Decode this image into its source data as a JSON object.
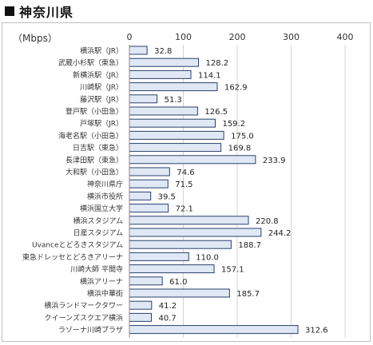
{
  "header": {
    "title": "神奈川県"
  },
  "chart_data": {
    "type": "bar",
    "orientation": "horizontal",
    "unit_label": "（Mbps）",
    "xlim": [
      0,
      400
    ],
    "xticks": [
      "0",
      "100",
      "200",
      "300",
      "400"
    ],
    "grid": true,
    "bar_color": "#e0e8f5",
    "bar_stroke": "#2a3f6b",
    "categories": [
      "横浜駅（JR）",
      "武蔵小杉駅（東急）",
      "新横浜駅（JR）",
      "川崎駅（JR）",
      "藤沢駅（JR）",
      "登戸駅（小田急）",
      "戸塚駅（JR）",
      "海老名駅（小田急）",
      "日吉駅（東急）",
      "長津田駅（東急）",
      "大和駅（小田急）",
      "神奈川県庁",
      "横浜市役所",
      "横浜国立大学",
      "横浜スタジアム",
      "日産スタジアム",
      "Uvanceとどろきスタジアム",
      "東急ドレッセとどろきアリーナ",
      "川崎大師 平間寺",
      "横浜アリーナ",
      "横浜中華街",
      "横浜ランドマークタワー",
      "クイーンズスクエア横浜",
      "ラゾーナ川崎プラザ"
    ],
    "values": [
      32.8,
      128.2,
      114.1,
      162.9,
      51.3,
      126.5,
      159.2,
      175.0,
      169.8,
      233.9,
      74.6,
      71.5,
      39.5,
      72.1,
      220.8,
      244.2,
      188.7,
      110.0,
      157.1,
      61.0,
      185.7,
      41.2,
      40.7,
      312.6
    ],
    "value_labels": [
      "32.8",
      "128.2",
      "114.1",
      "162.9",
      "51.3",
      "126.5",
      "159.2",
      "175.0",
      "169.8",
      "233.9",
      "74.6",
      "71.5",
      "39.5",
      "72.1",
      "220.8",
      "244.2",
      "188.7",
      "110.0",
      "157.1",
      "61.0",
      "185.7",
      "41.2",
      "40.7",
      "312.6"
    ]
  }
}
